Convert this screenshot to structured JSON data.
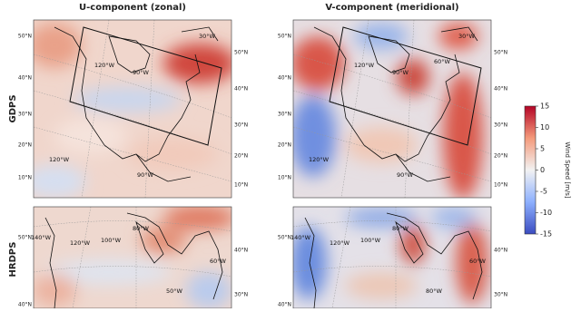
{
  "columns": [
    "U-component (zonal)",
    "V-component (meridional)"
  ],
  "rows": [
    "GDPS",
    "HRDPS"
  ],
  "panels": [
    {
      "left": [
        "50°N",
        "40°N",
        "30°N",
        "20°N",
        "10°N"
      ],
      "right": [
        "50°N",
        "40°N",
        "30°N",
        "20°N",
        "10°N"
      ],
      "inner": [
        "30°W",
        "120°W",
        "90°W",
        "120°W",
        "90°W"
      ]
    },
    {
      "left": [
        "50°N",
        "40°N",
        "30°N",
        "20°N",
        "10°N"
      ],
      "right": [
        "50°N",
        "40°N",
        "30°N",
        "20°N",
        "10°N"
      ],
      "inner": [
        "30°W",
        "120°W",
        "90°W",
        "60°W",
        "120°W",
        "90°W"
      ]
    },
    {
      "left": [
        "50°N",
        "40°N"
      ],
      "right": [
        "40°N",
        "30°N"
      ],
      "inner": [
        "140°W",
        "120°W",
        "100°W",
        "80°W",
        "60°W",
        "50°W"
      ]
    },
    {
      "left": [
        "50°N",
        "40°N"
      ],
      "right": [
        "40°N",
        "30°N"
      ],
      "inner": [
        "140°W",
        "120°W",
        "100°W",
        "80°W",
        "60°W",
        "80°W"
      ]
    }
  ],
  "colorbar": {
    "label": "Wind Speed [m/s]",
    "lim": [
      -15,
      15
    ],
    "ticks": [
      -15,
      -10,
      -5,
      0,
      5,
      10,
      15
    ]
  }
}
